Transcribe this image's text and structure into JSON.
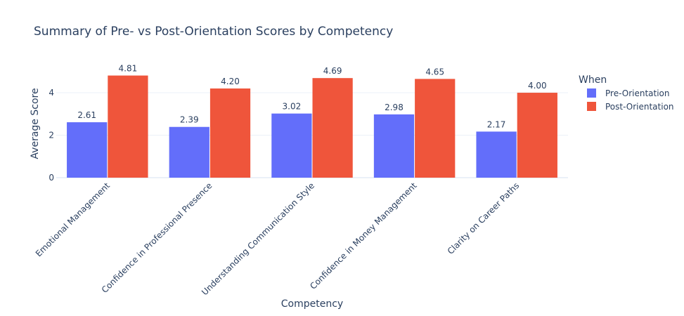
{
  "chart_data": {
    "type": "bar",
    "title": "Summary of Pre- vs Post-Orientation Scores by Competency",
    "xlabel": "Competency",
    "ylabel": "Average Score",
    "categories": [
      "Emotional Management",
      "Confidence in Professional Presence",
      "Understanding Communication Style",
      "Confidence in Money Management",
      "Clarity on Career Paths"
    ],
    "series": [
      {
        "name": "Pre-Orientation",
        "values": [
          2.61,
          2.39,
          3.02,
          2.98,
          2.17
        ],
        "labels": [
          "2.61",
          "2.39",
          "3.02",
          "2.98",
          "2.17"
        ],
        "color": "#636efa"
      },
      {
        "name": "Post-Orientation",
        "values": [
          4.81,
          4.2,
          4.69,
          4.65,
          4.0
        ],
        "labels": [
          "4.81",
          "4.20",
          "4.69",
          "4.65",
          "4.00"
        ],
        "color": "#ef553b"
      }
    ],
    "ylim": [
      0,
      5.06
    ],
    "yticks": [
      0,
      2,
      4
    ],
    "legend": {
      "title": "When",
      "placement": "top-right"
    },
    "grid": true
  }
}
